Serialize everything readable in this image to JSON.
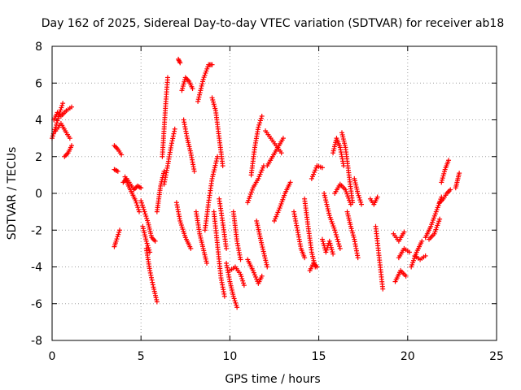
{
  "chart_data": {
    "type": "scatter",
    "title": "Day 162 of 2025, Sidereal Day-to-day VTEC variation (SDTVAR) for receiver ab18",
    "xlabel": "GPS time / hours",
    "ylabel": "SDTVAR / TECUs",
    "xlim": [
      0,
      25
    ],
    "ylim": [
      -8,
      8
    ],
    "xticks": [
      0,
      5,
      10,
      15,
      20,
      25
    ],
    "yticks": [
      -8,
      -6,
      -4,
      -2,
      0,
      2,
      4,
      6,
      8
    ],
    "grid": true,
    "marker": "+",
    "color": "#ff0000",
    "series": [
      {
        "name": "ab18",
        "tracks": [
          [
            [
              0.0,
              3.0
            ],
            [
              0.2,
              3.6
            ],
            [
              0.4,
              4.3
            ],
            [
              0.6,
              4.9
            ]
          ],
          [
            [
              0.1,
              4.0
            ],
            [
              0.3,
              4.4
            ],
            [
              0.5,
              4.2
            ],
            [
              0.8,
              4.5
            ],
            [
              1.1,
              4.7
            ]
          ],
          [
            [
              0.2,
              3.4
            ],
            [
              0.5,
              3.8
            ],
            [
              0.8,
              3.3
            ],
            [
              1.0,
              3.0
            ]
          ],
          [
            [
              0.7,
              2.0
            ],
            [
              0.9,
              2.2
            ],
            [
              1.1,
              2.6
            ]
          ],
          [
            [
              3.5,
              -2.9
            ],
            [
              3.6,
              -2.6
            ],
            [
              3.8,
              -2.0
            ]
          ],
          [
            [
              3.5,
              2.6
            ],
            [
              3.7,
              2.4
            ],
            [
              3.9,
              2.1
            ]
          ],
          [
            [
              3.5,
              1.3
            ],
            [
              3.7,
              1.2
            ]
          ],
          [
            [
              4.1,
              0.9
            ],
            [
              4.3,
              0.4
            ],
            [
              4.5,
              0.0
            ],
            [
              4.7,
              -0.4
            ],
            [
              4.9,
              -1.0
            ]
          ],
          [
            [
              4.0,
              0.6
            ],
            [
              4.2,
              0.8
            ],
            [
              4.4,
              0.5
            ],
            [
              4.6,
              0.2
            ],
            [
              4.8,
              0.4
            ],
            [
              5.0,
              0.3
            ]
          ],
          [
            [
              5.0,
              -0.4
            ],
            [
              5.2,
              -1.0
            ],
            [
              5.4,
              -1.6
            ],
            [
              5.6,
              -2.4
            ],
            [
              5.8,
              -2.6
            ]
          ],
          [
            [
              5.3,
              -3.0
            ],
            [
              5.5,
              -4.2
            ],
            [
              5.7,
              -5.1
            ],
            [
              5.9,
              -5.9
            ]
          ],
          [
            [
              5.1,
              -1.8
            ],
            [
              5.3,
              -2.6
            ],
            [
              5.5,
              -3.2
            ]
          ],
          [
            [
              5.9,
              -1.0
            ],
            [
              6.0,
              -0.3
            ],
            [
              6.1,
              0.4
            ],
            [
              6.3,
              1.2
            ]
          ],
          [
            [
              6.2,
              2.0
            ],
            [
              6.3,
              3.5
            ],
            [
              6.4,
              5.0
            ],
            [
              6.5,
              6.3
            ]
          ],
          [
            [
              6.3,
              0.5
            ],
            [
              6.5,
              1.5
            ],
            [
              6.7,
              2.6
            ],
            [
              6.9,
              3.5
            ]
          ],
          [
            [
              7.0,
              -0.5
            ],
            [
              7.2,
              -1.5
            ],
            [
              7.5,
              -2.4
            ],
            [
              7.8,
              -3.0
            ]
          ],
          [
            [
              7.3,
              5.6
            ],
            [
              7.5,
              6.3
            ],
            [
              7.7,
              6.1
            ],
            [
              7.9,
              5.7
            ]
          ],
          [
            [
              7.4,
              4.0
            ],
            [
              7.6,
              3.0
            ],
            [
              7.8,
              2.2
            ],
            [
              8.0,
              1.2
            ]
          ],
          [
            [
              7.1,
              7.3
            ],
            [
              7.2,
              7.1
            ]
          ],
          [
            [
              8.2,
              5.0
            ],
            [
              8.5,
              6.2
            ],
            [
              8.8,
              7.0
            ],
            [
              9.0,
              7.0
            ]
          ],
          [
            [
              8.1,
              -1.0
            ],
            [
              8.3,
              -2.2
            ],
            [
              8.5,
              -3.0
            ],
            [
              8.7,
              -3.8
            ]
          ],
          [
            [
              8.6,
              -2.0
            ],
            [
              8.8,
              -0.5
            ],
            [
              9.0,
              0.8
            ],
            [
              9.3,
              2.0
            ]
          ],
          [
            [
              9.0,
              5.2
            ],
            [
              9.2,
              4.5
            ],
            [
              9.4,
              3.0
            ],
            [
              9.6,
              1.5
            ]
          ],
          [
            [
              9.1,
              -1.0
            ],
            [
              9.3,
              -2.8
            ],
            [
              9.5,
              -4.6
            ],
            [
              9.7,
              -5.6
            ]
          ],
          [
            [
              9.4,
              -0.3
            ],
            [
              9.6,
              -1.6
            ],
            [
              9.8,
              -3.0
            ]
          ],
          [
            [
              9.8,
              -3.8
            ],
            [
              10.0,
              -4.8
            ],
            [
              10.2,
              -5.6
            ],
            [
              10.4,
              -6.2
            ]
          ],
          [
            [
              10.0,
              -4.2
            ],
            [
              10.3,
              -4.0
            ],
            [
              10.6,
              -4.4
            ],
            [
              10.8,
              -5.0
            ]
          ],
          [
            [
              10.2,
              -1.0
            ],
            [
              10.4,
              -2.6
            ],
            [
              10.6,
              -3.6
            ]
          ],
          [
            [
              11.0,
              -3.6
            ],
            [
              11.3,
              -4.2
            ],
            [
              11.6,
              -4.9
            ],
            [
              11.8,
              -4.5
            ]
          ],
          [
            [
              11.2,
              1.0
            ],
            [
              11.4,
              2.5
            ],
            [
              11.6,
              3.6
            ],
            [
              11.8,
              4.2
            ]
          ],
          [
            [
              11.0,
              -0.5
            ],
            [
              11.3,
              0.3
            ],
            [
              11.6,
              0.8
            ],
            [
              11.9,
              1.5
            ]
          ],
          [
            [
              11.5,
              -1.5
            ],
            [
              11.8,
              -2.8
            ],
            [
              12.1,
              -4.0
            ]
          ],
          [
            [
              12.0,
              3.4
            ],
            [
              12.3,
              3.0
            ],
            [
              12.6,
              2.6
            ],
            [
              12.9,
              2.2
            ]
          ],
          [
            [
              12.1,
              1.5
            ],
            [
              12.4,
              2.0
            ],
            [
              12.7,
              2.5
            ],
            [
              13.0,
              3.0
            ]
          ],
          [
            [
              12.5,
              -1.5
            ],
            [
              12.8,
              -0.8
            ],
            [
              13.1,
              0.0
            ],
            [
              13.4,
              0.6
            ]
          ],
          [
            [
              13.6,
              -1.0
            ],
            [
              13.8,
              -2.0
            ],
            [
              14.0,
              -3.0
            ],
            [
              14.2,
              -3.5
            ]
          ],
          [
            [
              14.2,
              -0.3
            ],
            [
              14.4,
              -1.8
            ],
            [
              14.6,
              -3.2
            ],
            [
              14.8,
              -4.0
            ]
          ],
          [
            [
              14.5,
              -4.2
            ],
            [
              14.7,
              -3.8
            ],
            [
              14.9,
              -4.0
            ]
          ],
          [
            [
              14.6,
              0.8
            ],
            [
              14.9,
              1.5
            ],
            [
              15.2,
              1.4
            ]
          ],
          [
            [
              15.2,
              -2.5
            ],
            [
              15.4,
              -3.2
            ],
            [
              15.6,
              -2.6
            ],
            [
              15.8,
              -3.3
            ]
          ],
          [
            [
              15.3,
              0.0
            ],
            [
              15.6,
              -1.2
            ],
            [
              15.9,
              -2.0
            ],
            [
              16.2,
              -3.0
            ]
          ],
          [
            [
              15.8,
              2.2
            ],
            [
              16.0,
              3.0
            ],
            [
              16.2,
              2.5
            ],
            [
              16.4,
              1.5
            ]
          ],
          [
            [
              15.9,
              0.0
            ],
            [
              16.2,
              0.5
            ],
            [
              16.5,
              0.2
            ],
            [
              16.8,
              -0.6
            ]
          ],
          [
            [
              16.3,
              3.3
            ],
            [
              16.5,
              2.5
            ],
            [
              16.7,
              1.0
            ],
            [
              16.9,
              -0.5
            ]
          ],
          [
            [
              16.6,
              -1.0
            ],
            [
              16.8,
              -1.8
            ],
            [
              17.0,
              -2.5
            ],
            [
              17.2,
              -3.5
            ]
          ],
          [
            [
              17.0,
              0.8
            ],
            [
              17.2,
              0.0
            ],
            [
              17.4,
              -0.6
            ]
          ],
          [
            [
              17.9,
              -0.3
            ],
            [
              18.1,
              -0.6
            ],
            [
              18.3,
              -0.2
            ]
          ],
          [
            [
              18.2,
              -1.8
            ],
            [
              18.4,
              -3.5
            ],
            [
              18.6,
              -5.2
            ]
          ],
          [
            [
              19.2,
              -2.2
            ],
            [
              19.5,
              -2.6
            ],
            [
              19.8,
              -2.1
            ]
          ],
          [
            [
              19.3,
              -4.8
            ],
            [
              19.6,
              -4.2
            ],
            [
              19.9,
              -4.5
            ]
          ],
          [
            [
              19.5,
              -3.5
            ],
            [
              19.8,
              -3.0
            ],
            [
              20.1,
              -3.2
            ]
          ],
          [
            [
              20.2,
              -4.0
            ],
            [
              20.5,
              -3.2
            ],
            [
              20.8,
              -2.6
            ]
          ],
          [
            [
              20.4,
              -3.4
            ],
            [
              20.7,
              -3.6
            ],
            [
              21.0,
              -3.4
            ]
          ],
          [
            [
              21.0,
              -2.4
            ],
            [
              21.3,
              -1.8
            ],
            [
              21.6,
              -1.0
            ],
            [
              21.9,
              -0.2
            ]
          ],
          [
            [
              21.2,
              -2.5
            ],
            [
              21.5,
              -2.2
            ],
            [
              21.8,
              -1.4
            ]
          ],
          [
            [
              21.8,
              -0.5
            ],
            [
              22.0,
              -0.3
            ],
            [
              22.2,
              0.0
            ],
            [
              22.4,
              0.2
            ]
          ],
          [
            [
              21.9,
              0.6
            ],
            [
              22.1,
              1.3
            ],
            [
              22.3,
              1.8
            ]
          ],
          [
            [
              22.7,
              0.3
            ],
            [
              22.8,
              0.7
            ],
            [
              22.9,
              1.1
            ]
          ]
        ]
      }
    ]
  }
}
